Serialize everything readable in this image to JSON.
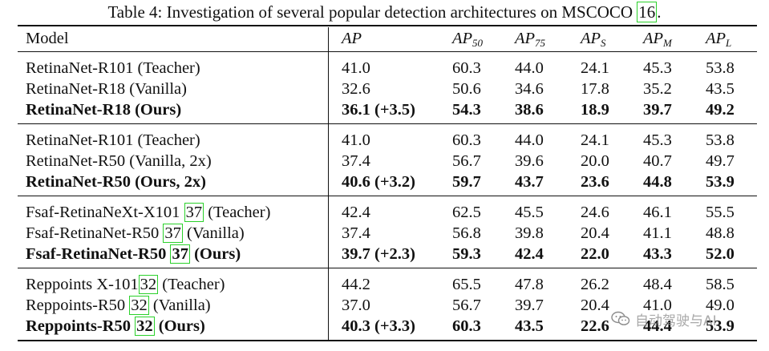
{
  "caption": {
    "prefix": "Table 4: Investigation of several popular detection architectures on MSCOCO ",
    "ref": "16",
    "suffix": "."
  },
  "header": {
    "model": "Model",
    "ap": "AP",
    "ap50_base": "AP",
    "ap50_sub": "50",
    "ap75_base": "AP",
    "ap75_sub": "75",
    "aps_base": "AP",
    "aps_sub": "S",
    "apm_base": "AP",
    "apm_sub": "M",
    "apl_base": "AP",
    "apl_sub": "L"
  },
  "groups": [
    {
      "rows": [
        {
          "model": "RetinaNet-R101 (Teacher)",
          "ap": "41.0",
          "ap50": "60.3",
          "ap75": "44.0",
          "aps": "24.1",
          "apm": "45.3",
          "apl": "53.8",
          "bold": false
        },
        {
          "model": "RetinaNet-R18 (Vanilla)",
          "ap": "32.6",
          "ap50": "50.6",
          "ap75": "34.6",
          "aps": "17.8",
          "apm": "35.2",
          "apl": "43.5",
          "bold": false
        },
        {
          "model": "RetinaNet-R18 (Ours)",
          "ap": "36.1 (+3.5)",
          "ap50": "54.3",
          "ap75": "38.6",
          "aps": "18.9",
          "apm": "39.7",
          "apl": "49.2",
          "bold": true
        }
      ]
    },
    {
      "rows": [
        {
          "model": "RetinaNet-R101 (Teacher)",
          "ap": "41.0",
          "ap50": "60.3",
          "ap75": "44.0",
          "aps": "24.1",
          "apm": "45.3",
          "apl": "53.8",
          "bold": false
        },
        {
          "model": "RetinaNet-R50 (Vanilla, 2x)",
          "ap": "37.4",
          "ap50": "56.7",
          "ap75": "39.6",
          "aps": "20.0",
          "apm": "40.7",
          "apl": "49.7",
          "bold": false
        },
        {
          "model": "RetinaNet-R50 (Ours, 2x)",
          "ap": "40.6 (+3.2)",
          "ap50": "59.7",
          "ap75": "43.7",
          "aps": "23.6",
          "apm": "44.8",
          "apl": "53.9",
          "bold": true
        }
      ]
    },
    {
      "rows": [
        {
          "model_pre": "Fsaf-RetinaNeXt-X101 ",
          "ref": "37",
          "model_post": " (Teacher)",
          "ap": "42.4",
          "ap50": "62.5",
          "ap75": "45.5",
          "aps": "24.6",
          "apm": "46.1",
          "apl": "55.5",
          "bold": false
        },
        {
          "model_pre": "Fsaf-RetinaNet-R50 ",
          "ref": "37",
          "model_post": " (Vanilla)",
          "ap": "37.4",
          "ap50": "56.8",
          "ap75": "39.8",
          "aps": "20.4",
          "apm": "41.1",
          "apl": "48.8",
          "bold": false
        },
        {
          "model_pre": "Fsaf-RetinaNet-R50 ",
          "ref": "37",
          "model_post": " (Ours)",
          "ap": "39.7 (+2.3)",
          "ap50": "59.3",
          "ap75": "42.4",
          "aps": "22.0",
          "apm": "43.3",
          "apl": "52.0",
          "bold": true
        }
      ]
    },
    {
      "rows": [
        {
          "model_pre": "Reppoints X-101",
          "ref": "32",
          "model_post": " (Teacher)",
          "ap": "44.2",
          "ap50": "65.5",
          "ap75": "47.8",
          "aps": "26.2",
          "apm": "48.4",
          "apl": "58.5",
          "bold": false
        },
        {
          "model_pre": "Reppoints-R50 ",
          "ref": "32",
          "model_post": " (Vanilla)",
          "ap": "37.0",
          "ap50": "56.7",
          "ap75": "39.7",
          "aps": "20.4",
          "apm": "41.0",
          "apl": "49.0",
          "bold": false
        },
        {
          "model_pre": "Reppoints-R50 ",
          "ref": "32",
          "model_post": " (Ours)",
          "ap": "40.3 (+3.3)",
          "ap50": "60.3",
          "ap75": "43.5",
          "aps": "22.6",
          "apm": "44.4",
          "apl": "53.9",
          "bold": true
        }
      ]
    }
  ],
  "watermark": {
    "icon": "wechat-icon",
    "text": "自动驾驶与AI",
    "color": "#8c8c8c"
  },
  "colors": {
    "ref_box": "#2bd12b",
    "text": "#111111"
  }
}
